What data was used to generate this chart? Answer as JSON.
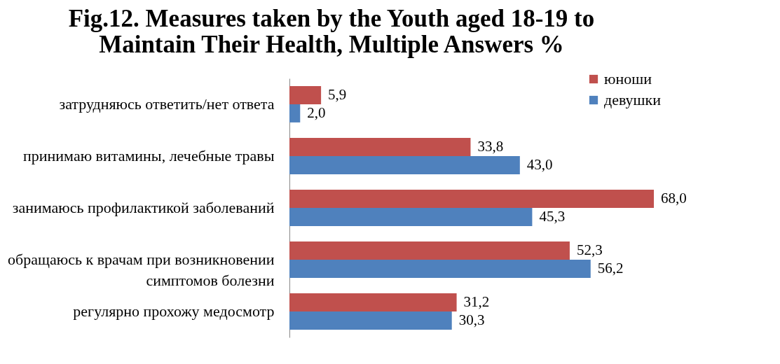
{
  "chart_data": {
    "type": "bar",
    "orientation": "horizontal",
    "title": "Fig.12. Measures taken by the Youth aged 18-19 to Maintain Their Health, Multiple Answers %",
    "categories": [
      "затрудняюсь ответить/нет ответа",
      "принимаю витамины, лечебные травы",
      "занимаюсь профилактикой заболеваний",
      "обращаюсь к врачам при возникновении симптомов болезни",
      "регулярно прохожу медосмотр"
    ],
    "series": [
      {
        "name": "юноши",
        "color": "#c0504d",
        "values": [
          5.9,
          33.8,
          68.0,
          52.3,
          31.2
        ],
        "value_labels": [
          "5,9",
          "33,8",
          "68,0",
          "52,3",
          "31,2"
        ]
      },
      {
        "name": "девушки",
        "color": "#4f81bd",
        "values": [
          2.0,
          43.0,
          45.3,
          56.2,
          30.3
        ],
        "value_labels": [
          "2,0",
          "43,0",
          "45,3",
          "56,2",
          "30,3"
        ]
      }
    ],
    "legend": "top right",
    "grid": false
  }
}
